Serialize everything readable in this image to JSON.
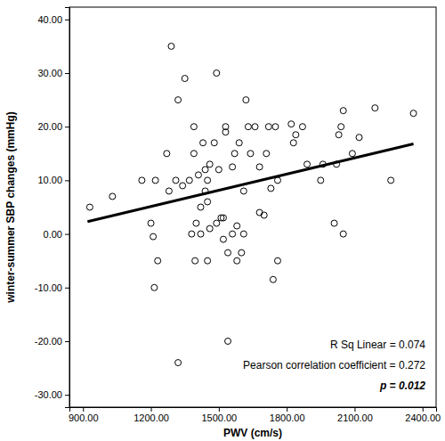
{
  "chart_data": {
    "type": "scatter",
    "x_label": "PWV (cm/s)",
    "y_label": "winter-summer SBP changes (mmHg)",
    "annotations": [
      "R Sq Linear = 0.074",
      "Pearson correlation coefficient = 0.272",
      "p = 0.012"
    ],
    "xlim": [
      840,
      2460
    ],
    "ylim": [
      -32.3,
      42.3
    ],
    "xticks": [
      {
        "value": 900,
        "label": "900.00"
      },
      {
        "value": 1200,
        "label": "1200.00"
      },
      {
        "value": 1500,
        "label": "1500.00"
      },
      {
        "value": 1800,
        "label": "1800.00"
      },
      {
        "value": 2100,
        "label": "2100.00"
      },
      {
        "value": 2400,
        "label": "2400.00"
      }
    ],
    "yticks": [
      {
        "value": -30,
        "label": "-30.00"
      },
      {
        "value": -20,
        "label": "-20.00"
      },
      {
        "value": -10,
        "label": "-10.00"
      },
      {
        "value": 0,
        "label": "0.00"
      },
      {
        "value": 10,
        "label": "10.00"
      },
      {
        "value": 20,
        "label": "20.00"
      },
      {
        "value": 30,
        "label": "30.00"
      },
      {
        "value": 40,
        "label": "40.00"
      }
    ],
    "grid": false,
    "series": [
      {
        "type": "scatter",
        "marker": "open-circle",
        "color": "#000000",
        "x": [
          930,
          1030,
          1160,
          1200,
          1210,
          1215,
          1220,
          1230,
          1270,
          1280,
          1290,
          1310,
          1320,
          1320,
          1340,
          1350,
          1370,
          1380,
          1390,
          1390,
          1395,
          1400,
          1410,
          1420,
          1420,
          1430,
          1440,
          1440,
          1450,
          1450,
          1450,
          1460,
          1460,
          1480,
          1490,
          1490,
          1500,
          1510,
          1520,
          1520,
          1530,
          1530,
          1540,
          1540,
          1560,
          1560,
          1570,
          1580,
          1580,
          1590,
          1600,
          1610,
          1610,
          1620,
          1630,
          1640,
          1660,
          1680,
          1680,
          1700,
          1710,
          1720,
          1730,
          1740,
          1750,
          1760,
          1760,
          1820,
          1830,
          1840,
          1870,
          1890,
          1950,
          1960,
          2010,
          2020,
          2030,
          2040,
          2050,
          2050,
          2090,
          2120,
          2190,
          2260,
          2360
        ],
        "values": [
          5,
          7,
          10,
          2,
          -0.5,
          -10,
          10,
          -5,
          15,
          8,
          35,
          10,
          25,
          -24,
          9,
          29,
          10,
          0,
          15,
          20,
          -5,
          2,
          11,
          5,
          0,
          17,
          8,
          12,
          10,
          6,
          -5,
          13,
          1,
          17,
          30,
          2,
          12,
          3,
          3,
          -1,
          20,
          19,
          -3.5,
          -20,
          0,
          12.5,
          15,
          1.5,
          -5,
          17,
          -3.5,
          0,
          8,
          25,
          20,
          15,
          20,
          12.5,
          4,
          3.5,
          15,
          20,
          8.5,
          -8.5,
          20,
          -5,
          10,
          20.5,
          17,
          18.5,
          20,
          13,
          10,
          13,
          2,
          13,
          18.5,
          20,
          23,
          0,
          15,
          18,
          23.5,
          10,
          22.5
        ]
      },
      {
        "type": "line",
        "line_style": "solid",
        "color": "#000000",
        "x": [
          920,
          2360
        ],
        "values": [
          2.3,
          16.8
        ]
      }
    ]
  }
}
